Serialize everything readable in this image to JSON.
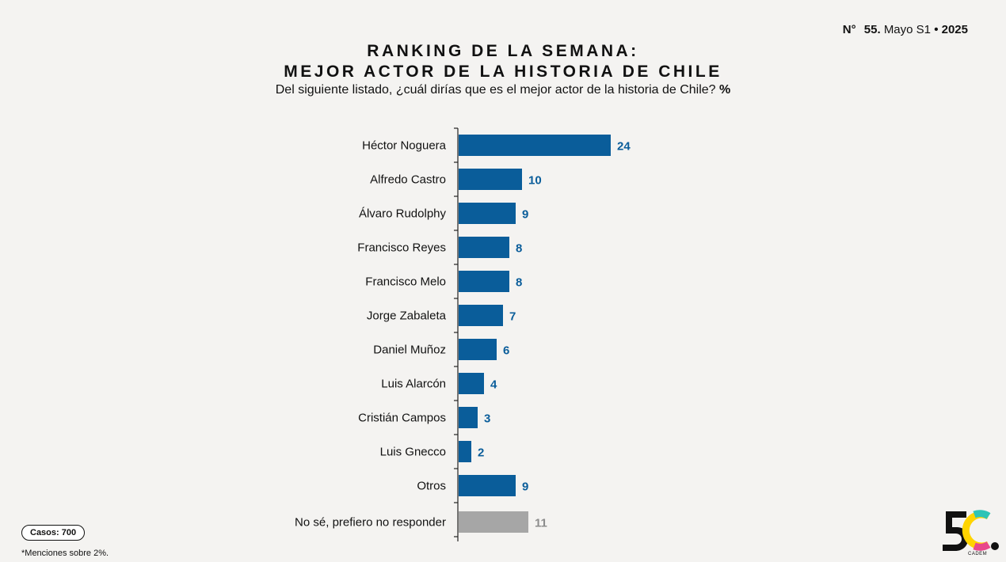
{
  "header": {
    "issue_prefix": "N°",
    "issue_number": "55.",
    "issue_period": "Mayo S1",
    "issue_sep": "•",
    "issue_year": "2025",
    "title_line1": "RANKING DE LA SEMANA:",
    "title_line2": "MEJOR ACTOR DE LA HISTORIA DE CHILE",
    "subtitle": "Del siguiente listado, ¿cuál dirías que es el mejor actor de la historia de Chile?",
    "subtitle_unit": "%"
  },
  "colors": {
    "bar": "#0a5d9a",
    "bar_muted": "#a6a6a6",
    "label_value": "#0a5d9a",
    "label_value_muted": "#8c8c8c"
  },
  "chart_data": {
    "type": "bar",
    "orientation": "horizontal",
    "categories": [
      "Héctor Noguera",
      "Alfredo Castro",
      "Álvaro Rudolphy",
      "Francisco Reyes",
      "Francisco Melo",
      "Jorge Zabaleta",
      "Daniel Muñoz",
      "Luis Alarcón",
      "Cristián Campos",
      "Luis Gnecco",
      "Otros",
      "No sé, prefiero no responder"
    ],
    "values": [
      24,
      10,
      9,
      8,
      8,
      7,
      6,
      4,
      3,
      2,
      9,
      11
    ],
    "muted": [
      false,
      false,
      false,
      false,
      false,
      false,
      false,
      false,
      false,
      false,
      false,
      true
    ],
    "xlim": [
      0,
      30
    ],
    "grid": false,
    "legend": "none"
  },
  "footer": {
    "casos": "Casos: 700",
    "footnote": "*Menciones sobre 2%.",
    "brand": "CADEM"
  }
}
